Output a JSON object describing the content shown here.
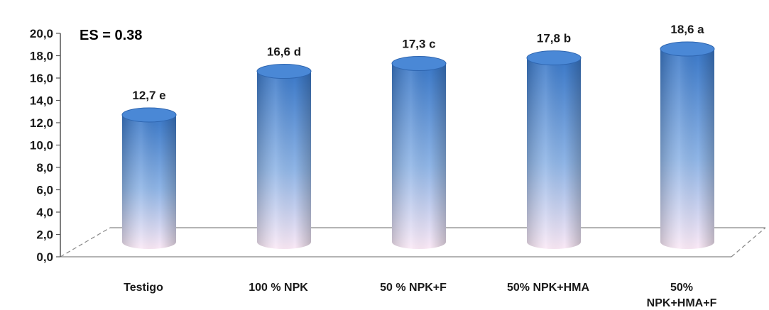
{
  "chart_data": {
    "type": "bar",
    "categories": [
      [
        "Testigo"
      ],
      [
        "100 % NPK"
      ],
      [
        "50 % NPK+F"
      ],
      [
        "50% NPK+HMA"
      ],
      [
        "50%",
        "NPK+HMA+F"
      ]
    ],
    "values": [
      12.7,
      16.6,
      17.3,
      17.8,
      18.6
    ],
    "data_labels": [
      "12,7 e",
      "16,6 d",
      "17,3 c",
      "17,8 b",
      "18,6 a"
    ],
    "ylim": [
      0,
      20
    ],
    "yticks": [
      "0,0",
      "2,0",
      "4,0",
      "6,0",
      "8,0",
      "10,0",
      "12,0",
      "14,0",
      "16,0",
      "18,0",
      "20,0"
    ],
    "annotation": "ES = 0.38",
    "title": "",
    "xlabel": "",
    "ylabel": "",
    "grid": false,
    "colors": {
      "bar_top": "#3a78c8",
      "bar_bottom": "#fbe9f6",
      "cap": "#4a88d6",
      "axis": "#888888"
    }
  }
}
